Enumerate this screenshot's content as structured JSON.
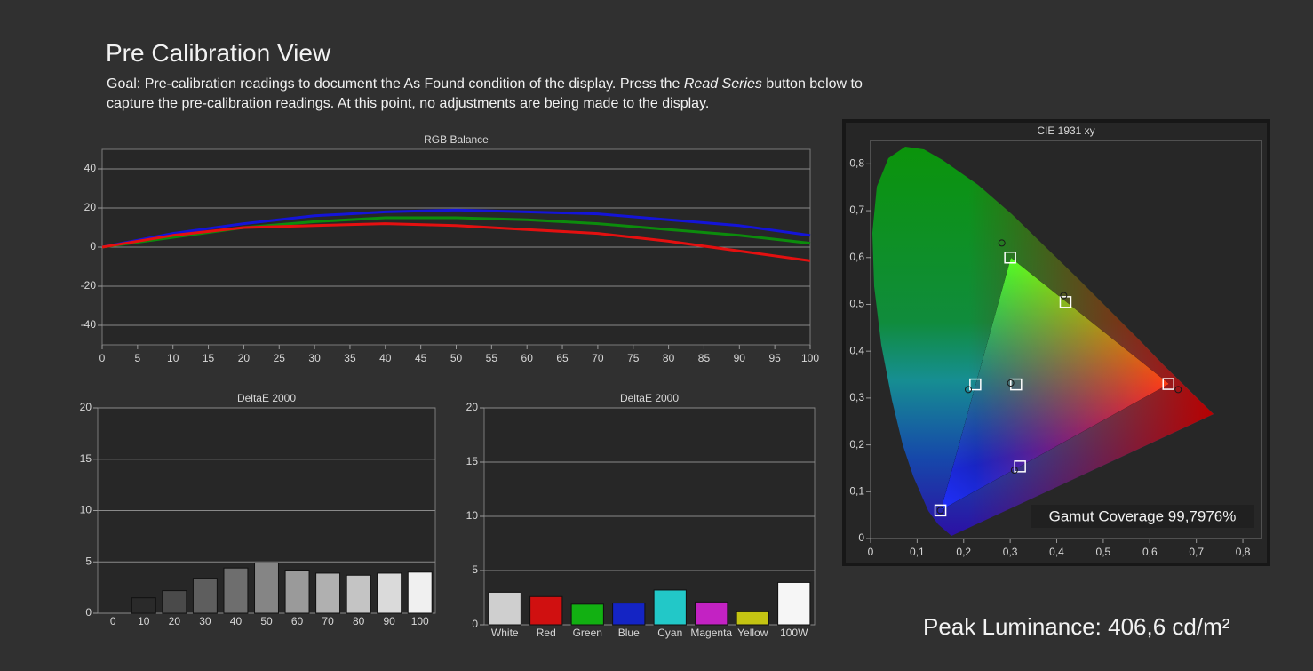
{
  "header": {
    "title": "Pre Calibration View",
    "goal": [
      "Goal: Pre-calibration readings to document the As Found condition of the display. Press the ",
      "Read Series",
      " button below to capture the pre-calibration readings. At this point, no adjustments are being made to the display."
    ],
    "peak_luminance": "Peak Luminance: 406,6 cd/m²"
  },
  "chart_data": [
    {
      "type": "line",
      "title": "RGB Balance",
      "x": [
        0,
        10,
        20,
        30,
        40,
        50,
        60,
        70,
        80,
        90,
        100
      ],
      "series": [
        {
          "color": "#1414d8",
          "values": [
            0,
            7,
            12,
            16,
            18,
            19,
            18,
            17,
            14,
            11,
            6
          ]
        },
        {
          "color": "#0c8c0c",
          "values": [
            0,
            5,
            10,
            13,
            15,
            15,
            14,
            12,
            9,
            6,
            2
          ]
        },
        {
          "color": "#e41010",
          "values": [
            0,
            6,
            10,
            11,
            12,
            11,
            9,
            7,
            3,
            -2,
            -7
          ]
        }
      ],
      "xlim": [
        0,
        100
      ],
      "xticks": [
        0,
        5,
        10,
        15,
        20,
        25,
        30,
        35,
        40,
        45,
        50,
        55,
        60,
        65,
        70,
        75,
        80,
        85,
        90,
        95,
        100
      ],
      "ylim": [
        -50,
        50
      ],
      "yticks": [
        -40,
        -20,
        0,
        20,
        40
      ],
      "grid": true
    },
    {
      "type": "bar",
      "title": "DeltaE 2000",
      "categories": [
        "0",
        "10",
        "20",
        "30",
        "40",
        "50",
        "60",
        "70",
        "80",
        "90",
        "100"
      ],
      "values": [
        0,
        1.5,
        2.2,
        3.4,
        4.4,
        4.9,
        4.2,
        3.9,
        3.7,
        3.9,
        4.0
      ],
      "colors": [
        "#1c1c1c",
        "#2a2a2a",
        "#4a4a4a",
        "#5e5e5e",
        "#6e6e6e",
        "#858585",
        "#9a9a9a",
        "#b0b0b0",
        "#c4c4c4",
        "#dadada",
        "#f0f0f0"
      ],
      "ylim": [
        0,
        20
      ],
      "yticks": [
        0,
        5,
        10,
        15,
        20
      ],
      "grid": true
    },
    {
      "type": "bar",
      "title": "DeltaE 2000",
      "categories": [
        "White",
        "Red",
        "Green",
        "Blue",
        "Cyan",
        "Magenta",
        "Yellow",
        "100W"
      ],
      "values": [
        3.0,
        2.6,
        1.9,
        2.0,
        3.2,
        2.1,
        1.2,
        3.9
      ],
      "colors": [
        "#cfcfcf",
        "#d01010",
        "#12b012",
        "#1424c4",
        "#22c8c8",
        "#c322c3",
        "#c4c412",
        "#f6f6f6"
      ],
      "ylim": [
        0,
        20
      ],
      "yticks": [
        0,
        5,
        10,
        15,
        20
      ],
      "grid": true
    },
    {
      "type": "scatter",
      "title": "CIE 1931 xy",
      "series": [
        {
          "marker": "square",
          "color": "#ffffff",
          "x": [
            0.64,
            0.3,
            0.15,
            0.225,
            0.321,
            0.419,
            0.3127
          ],
          "y": [
            0.33,
            0.6,
            0.06,
            0.329,
            0.154,
            0.505,
            0.329
          ]
        },
        {
          "marker": "circle",
          "color": "#1a1a1a",
          "x": [
            0.661,
            0.282,
            0.15,
            0.21,
            0.309,
            0.415,
            0.301
          ],
          "y": [
            0.318,
            0.631,
            0.06,
            0.318,
            0.146,
            0.519,
            0.332
          ]
        }
      ],
      "annotation": "Gamut Coverage 99,7976%",
      "xlim": [
        0,
        0.84
      ],
      "xticks": [
        0,
        {
          "value": 0.1,
          "label": "0,1"
        },
        {
          "value": 0.2,
          "label": "0,2"
        },
        {
          "value": 0.3,
          "label": "0,3"
        },
        {
          "value": 0.4,
          "label": "0,4"
        },
        {
          "value": 0.5,
          "label": "0,5"
        },
        {
          "value": 0.6,
          "label": "0,6"
        },
        {
          "value": 0.7,
          "label": "0,7"
        },
        {
          "value": 0.8,
          "label": "0,8"
        }
      ],
      "ylim": [
        0,
        0.85
      ],
      "yticks": [
        0,
        {
          "value": 0.1,
          "label": "0,1"
        },
        {
          "value": 0.2,
          "label": "0,2"
        },
        {
          "value": 0.3,
          "label": "0,3"
        },
        {
          "value": 0.4,
          "label": "0,4"
        },
        {
          "value": 0.5,
          "label": "0,5"
        },
        {
          "value": 0.6,
          "label": "0,6"
        },
        {
          "value": 0.7,
          "label": "0,7"
        },
        {
          "value": 0.8,
          "label": "0,8"
        }
      ],
      "grid": false
    }
  ]
}
